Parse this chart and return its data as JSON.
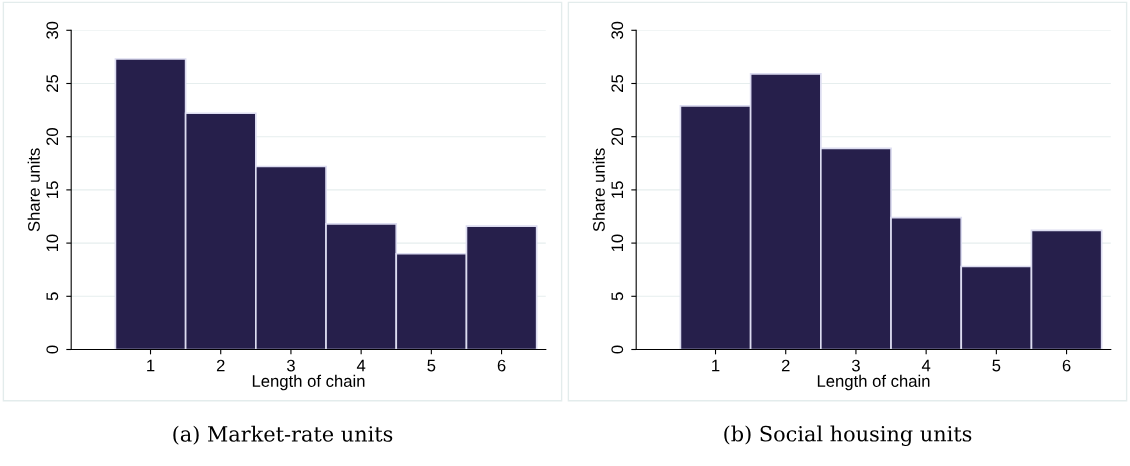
{
  "chart_data": [
    {
      "type": "histogram",
      "xlabel": "Length of chain",
      "ylabel": "Share units",
      "bins": [
        0.5,
        1.5,
        2.5,
        3.5,
        4.5,
        5.5,
        6.5
      ],
      "values": [
        27.3,
        22.2,
        17.2,
        11.8,
        9.0,
        11.6
      ],
      "color": "#261f4b",
      "xlim": [
        -0.13,
        6.63
      ],
      "xticks": [
        1,
        2,
        3,
        4,
        5,
        6
      ],
      "ylim": [
        0,
        30
      ],
      "yticks": [
        0,
        5,
        10,
        15,
        20,
        25,
        30
      ],
      "grid": "y",
      "annotations": [
        "(a) Market-rate units"
      ]
    },
    {
      "type": "histogram",
      "xlabel": "Length of chain",
      "ylabel": "Share units",
      "bins": [
        0.5,
        1.5,
        2.5,
        3.5,
        4.5,
        5.5,
        6.5
      ],
      "values": [
        22.9,
        25.9,
        18.9,
        12.4,
        7.8,
        11.2
      ],
      "color": "#261f4b",
      "xlim": [
        -0.13,
        6.63
      ],
      "xticks": [
        1,
        2,
        3,
        4,
        5,
        6
      ],
      "ylim": [
        0,
        30
      ],
      "yticks": [
        0,
        5,
        10,
        15,
        20,
        25,
        30
      ],
      "grid": "y",
      "annotations": [
        "(b) Social housing units"
      ]
    }
  ]
}
